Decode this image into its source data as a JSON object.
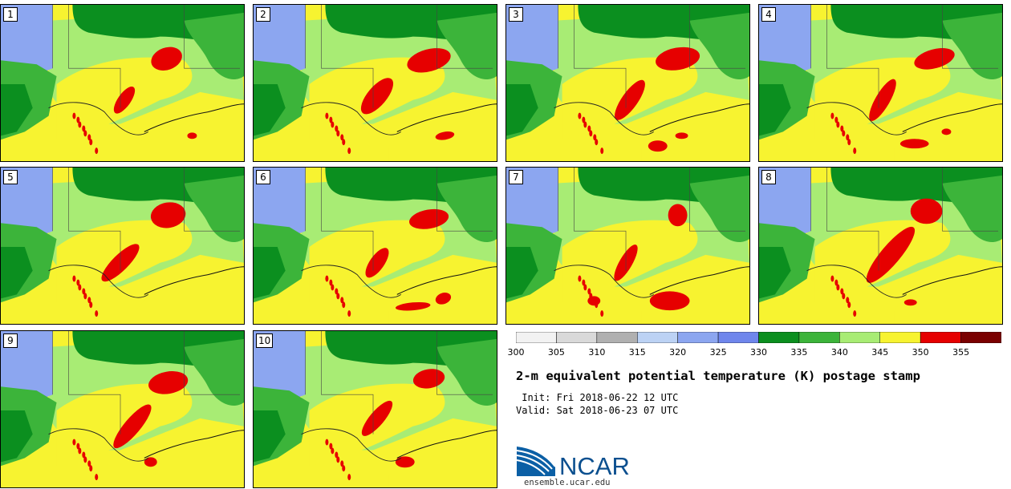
{
  "title": "2-m equivalent potential temperature (K) postage stamp",
  "init": " Init: Fri 2018-06-22 12 UTC",
  "valid": "Valid: Sat 2018-06-23 07 UTC",
  "logo": {
    "text": "NCAR",
    "url": "ensemble.ucar.edu"
  },
  "members": [
    "1",
    "2",
    "3",
    "4",
    "5",
    "6",
    "7",
    "8",
    "9",
    "10"
  ],
  "colorbar": {
    "ticks": [
      "300",
      "305",
      "310",
      "315",
      "320",
      "325",
      "330",
      "335",
      "340",
      "345",
      "350",
      "355"
    ],
    "colors": [
      "#f2f2f2",
      "#d9d9d9",
      "#b0b0b0",
      "#bcd2f4",
      "#8ca6f0",
      "#6f86ec",
      "#0b8f1f",
      "#3cb43a",
      "#a8ec74",
      "#f7f330",
      "#e60000",
      "#7a0000"
    ]
  },
  "legend_colors": {
    "ocean_gulf": "#f7f330",
    "hot": "#e60000",
    "warm": "#f7f330",
    "mild": "#a8ec74",
    "cool_green": "#3cb43a",
    "dark_green": "#0b8f1f",
    "blue": "#8ca6f0"
  }
}
